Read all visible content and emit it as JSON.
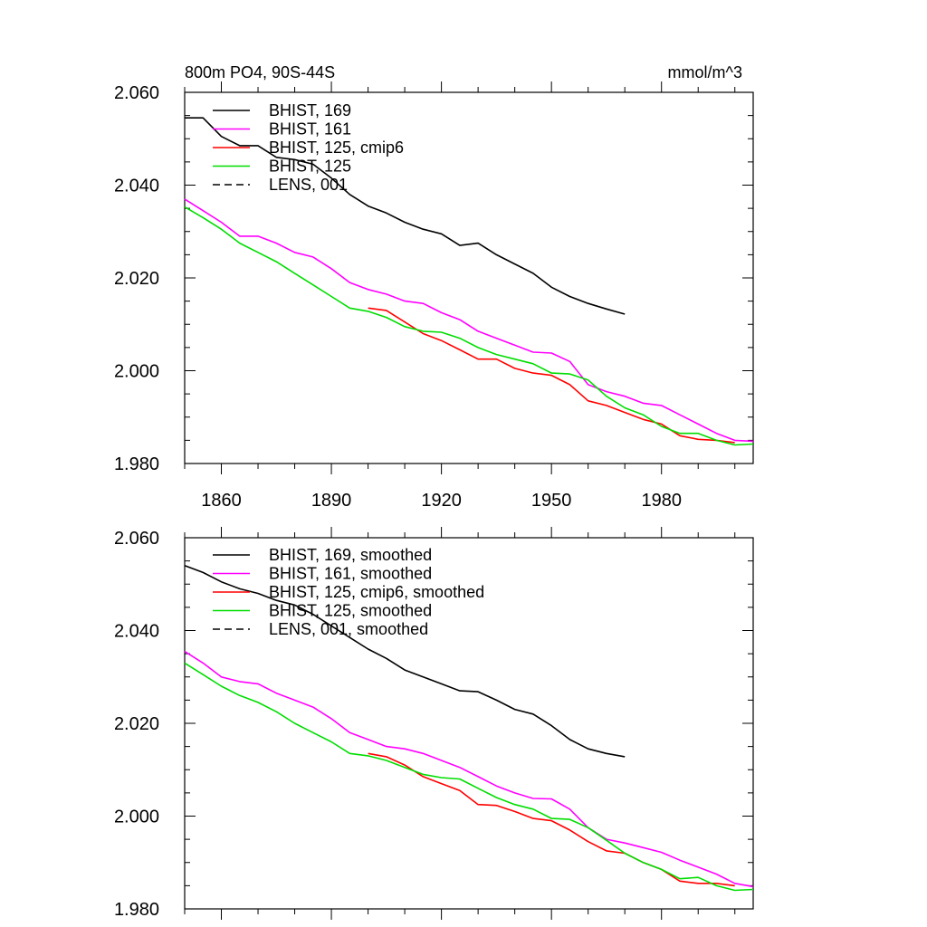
{
  "colors": {
    "axis": "#000000",
    "background": "#ffffff"
  },
  "chart_data": [
    {
      "type": "line",
      "title_left": "800m PO4, 90S-44S",
      "title_right": "mmol/m^3",
      "xlim": [
        1850,
        2005
      ],
      "ylim": [
        1.98,
        2.06
      ],
      "y_tick_labels": [
        "2.060",
        "2.040",
        "2.020",
        "2.000",
        "1.980"
      ],
      "x_tick_labels": [
        "1860",
        "1890",
        "1920",
        "1950",
        "1980"
      ],
      "grid": false,
      "legend_position": "top-left",
      "series": [
        {
          "name": "BHIST, 169",
          "color": "#000000",
          "dash": "solid",
          "x": [
            1850,
            1855,
            1860,
            1865,
            1870,
            1875,
            1880,
            1885,
            1890,
            1895,
            1900,
            1905,
            1910,
            1915,
            1920,
            1925,
            1930,
            1935,
            1940,
            1945,
            1950,
            1955,
            1960,
            1965,
            1970
          ],
          "y": [
            2.0545,
            2.0545,
            2.0505,
            2.0485,
            2.0485,
            2.046,
            2.0455,
            2.0445,
            2.0415,
            2.038,
            2.0355,
            2.034,
            2.032,
            2.0305,
            2.0295,
            2.027,
            2.0275,
            2.025,
            2.023,
            2.021,
            2.018,
            2.016,
            2.0145,
            2.0133,
            2.0122
          ]
        },
        {
          "name": "BHIST, 161",
          "color": "#ff00ff",
          "dash": "solid",
          "x": [
            1850,
            1855,
            1860,
            1865,
            1870,
            1875,
            1880,
            1885,
            1890,
            1895,
            1900,
            1905,
            1910,
            1915,
            1920,
            1925,
            1930,
            1935,
            1940,
            1945,
            1950,
            1955,
            1960,
            1965,
            1970,
            1975,
            1980,
            1985,
            1990,
            1995,
            2000,
            2005
          ],
          "y": [
            2.037,
            2.0345,
            2.032,
            2.029,
            2.029,
            2.0275,
            2.0255,
            2.0245,
            2.022,
            2.019,
            2.0175,
            2.0165,
            2.015,
            2.0145,
            2.0125,
            2.011,
            2.0085,
            2.007,
            2.0055,
            2.004,
            2.0038,
            2.002,
            1.997,
            1.9955,
            1.9945,
            1.993,
            1.9925,
            1.9905,
            1.9885,
            1.9865,
            1.985,
            1.9848
          ]
        },
        {
          "name": "BHIST, 125, cmip6",
          "color": "#ff0000",
          "dash": "solid",
          "x": [
            1900,
            1905,
            1910,
            1915,
            1920,
            1925,
            1930,
            1935,
            1940,
            1945,
            1950,
            1955,
            1960,
            1965,
            1970,
            1975,
            1980,
            1985,
            1990,
            1995,
            2000
          ],
          "y": [
            2.0135,
            2.013,
            2.0105,
            2.008,
            2.0065,
            2.0045,
            2.0025,
            2.0025,
            2.0005,
            1.9995,
            1.999,
            1.997,
            1.9935,
            1.9925,
            1.991,
            1.9895,
            1.9885,
            1.986,
            1.9852,
            1.985,
            1.9845
          ]
        },
        {
          "name": "BHIST, 125",
          "color": "#00dd00",
          "dash": "solid",
          "x": [
            1850,
            1855,
            1860,
            1865,
            1870,
            1875,
            1880,
            1885,
            1890,
            1895,
            1900,
            1905,
            1910,
            1915,
            1920,
            1925,
            1930,
            1935,
            1940,
            1945,
            1950,
            1955,
            1960,
            1965,
            1970,
            1975,
            1980,
            1985,
            1990,
            1995,
            2000,
            2005
          ],
          "y": [
            2.0353,
            2.033,
            2.0305,
            2.0275,
            2.0255,
            2.0235,
            2.021,
            2.0185,
            2.016,
            2.0135,
            2.0128,
            2.0115,
            2.0095,
            2.0085,
            2.0083,
            2.007,
            2.005,
            2.0035,
            2.0025,
            2.0015,
            1.9995,
            1.9993,
            1.998,
            1.9945,
            1.992,
            1.9905,
            1.988,
            1.9865,
            1.9865,
            1.985,
            1.984,
            1.9842
          ]
        },
        {
          "name": "LENS, 001",
          "color": "#000000",
          "dash": "dashed",
          "x": [],
          "y": []
        }
      ]
    },
    {
      "type": "line",
      "ylim": [
        1.98,
        2.06
      ],
      "xlim": [
        1850,
        2005
      ],
      "y_tick_labels": [
        "2.060",
        "2.040",
        "2.020",
        "2.000",
        "1.980"
      ],
      "grid": false,
      "legend_position": "top-left",
      "series": [
        {
          "name": "BHIST, 169, smoothed",
          "color": "#000000",
          "dash": "solid",
          "x": [
            1850,
            1855,
            1860,
            1865,
            1870,
            1875,
            1880,
            1885,
            1890,
            1895,
            1900,
            1905,
            1910,
            1915,
            1920,
            1925,
            1930,
            1935,
            1940,
            1945,
            1950,
            1955,
            1960,
            1965,
            1970
          ],
          "y": [
            2.054,
            2.0525,
            2.0505,
            2.049,
            2.048,
            2.0465,
            2.0455,
            2.0435,
            2.041,
            2.0385,
            2.036,
            2.034,
            2.0315,
            2.03,
            2.0285,
            2.027,
            2.0268,
            2.025,
            2.023,
            2.022,
            2.0195,
            2.0165,
            2.0145,
            2.0135,
            2.0128
          ]
        },
        {
          "name": "BHIST, 161, smoothed",
          "color": "#ff00ff",
          "dash": "solid",
          "x": [
            1850,
            1855,
            1860,
            1865,
            1870,
            1875,
            1880,
            1885,
            1890,
            1895,
            1900,
            1905,
            1910,
            1915,
            1920,
            1925,
            1930,
            1935,
            1940,
            1945,
            1950,
            1955,
            1960,
            1965,
            1970,
            1975,
            1980,
            1985,
            1990,
            1995,
            2000,
            2005
          ],
          "y": [
            2.0355,
            2.033,
            2.03,
            2.029,
            2.0285,
            2.0265,
            2.025,
            2.0235,
            2.021,
            2.018,
            2.0165,
            2.015,
            2.0145,
            2.0135,
            2.012,
            2.0105,
            2.0085,
            2.0065,
            2.005,
            2.0038,
            2.0037,
            2.0015,
            1.9975,
            1.995,
            1.9942,
            1.9932,
            1.9922,
            1.9905,
            1.989,
            1.9875,
            1.9855,
            1.9848
          ]
        },
        {
          "name": "BHIST, 125, cmip6, smoothed",
          "color": "#ff0000",
          "dash": "solid",
          "x": [
            1900,
            1905,
            1910,
            1915,
            1920,
            1925,
            1930,
            1935,
            1940,
            1945,
            1950,
            1955,
            1960,
            1965,
            1970,
            1975,
            1980,
            1985,
            1990,
            1995,
            2000
          ],
          "y": [
            2.0135,
            2.0128,
            2.011,
            2.0085,
            2.007,
            2.0055,
            2.0025,
            2.0023,
            2.001,
            1.9995,
            1.999,
            1.997,
            1.9945,
            1.9925,
            1.992,
            1.99,
            1.9885,
            1.986,
            1.9855,
            1.9855,
            1.985
          ]
        },
        {
          "name": "BHIST, 125, smoothed",
          "color": "#00dd00",
          "dash": "solid",
          "x": [
            1850,
            1855,
            1860,
            1865,
            1870,
            1875,
            1880,
            1885,
            1890,
            1895,
            1900,
            1905,
            1910,
            1915,
            1920,
            1925,
            1930,
            1935,
            1940,
            1945,
            1950,
            1955,
            1960,
            1965,
            1970,
            1975,
            1980,
            1985,
            1990,
            1995,
            2000,
            2005
          ],
          "y": [
            2.033,
            2.0305,
            2.028,
            2.026,
            2.0245,
            2.0225,
            2.02,
            2.018,
            2.016,
            2.0135,
            2.013,
            2.012,
            2.0105,
            2.009,
            2.0083,
            2.008,
            2.006,
            2.004,
            2.0025,
            2.0015,
            1.9995,
            1.9993,
            1.9975,
            1.9948,
            1.992,
            1.99,
            1.9885,
            1.9865,
            1.9868,
            1.985,
            1.984,
            1.9842
          ]
        },
        {
          "name": "LENS, 001, smoothed",
          "color": "#000000",
          "dash": "dashed",
          "x": [],
          "y": []
        }
      ]
    }
  ]
}
